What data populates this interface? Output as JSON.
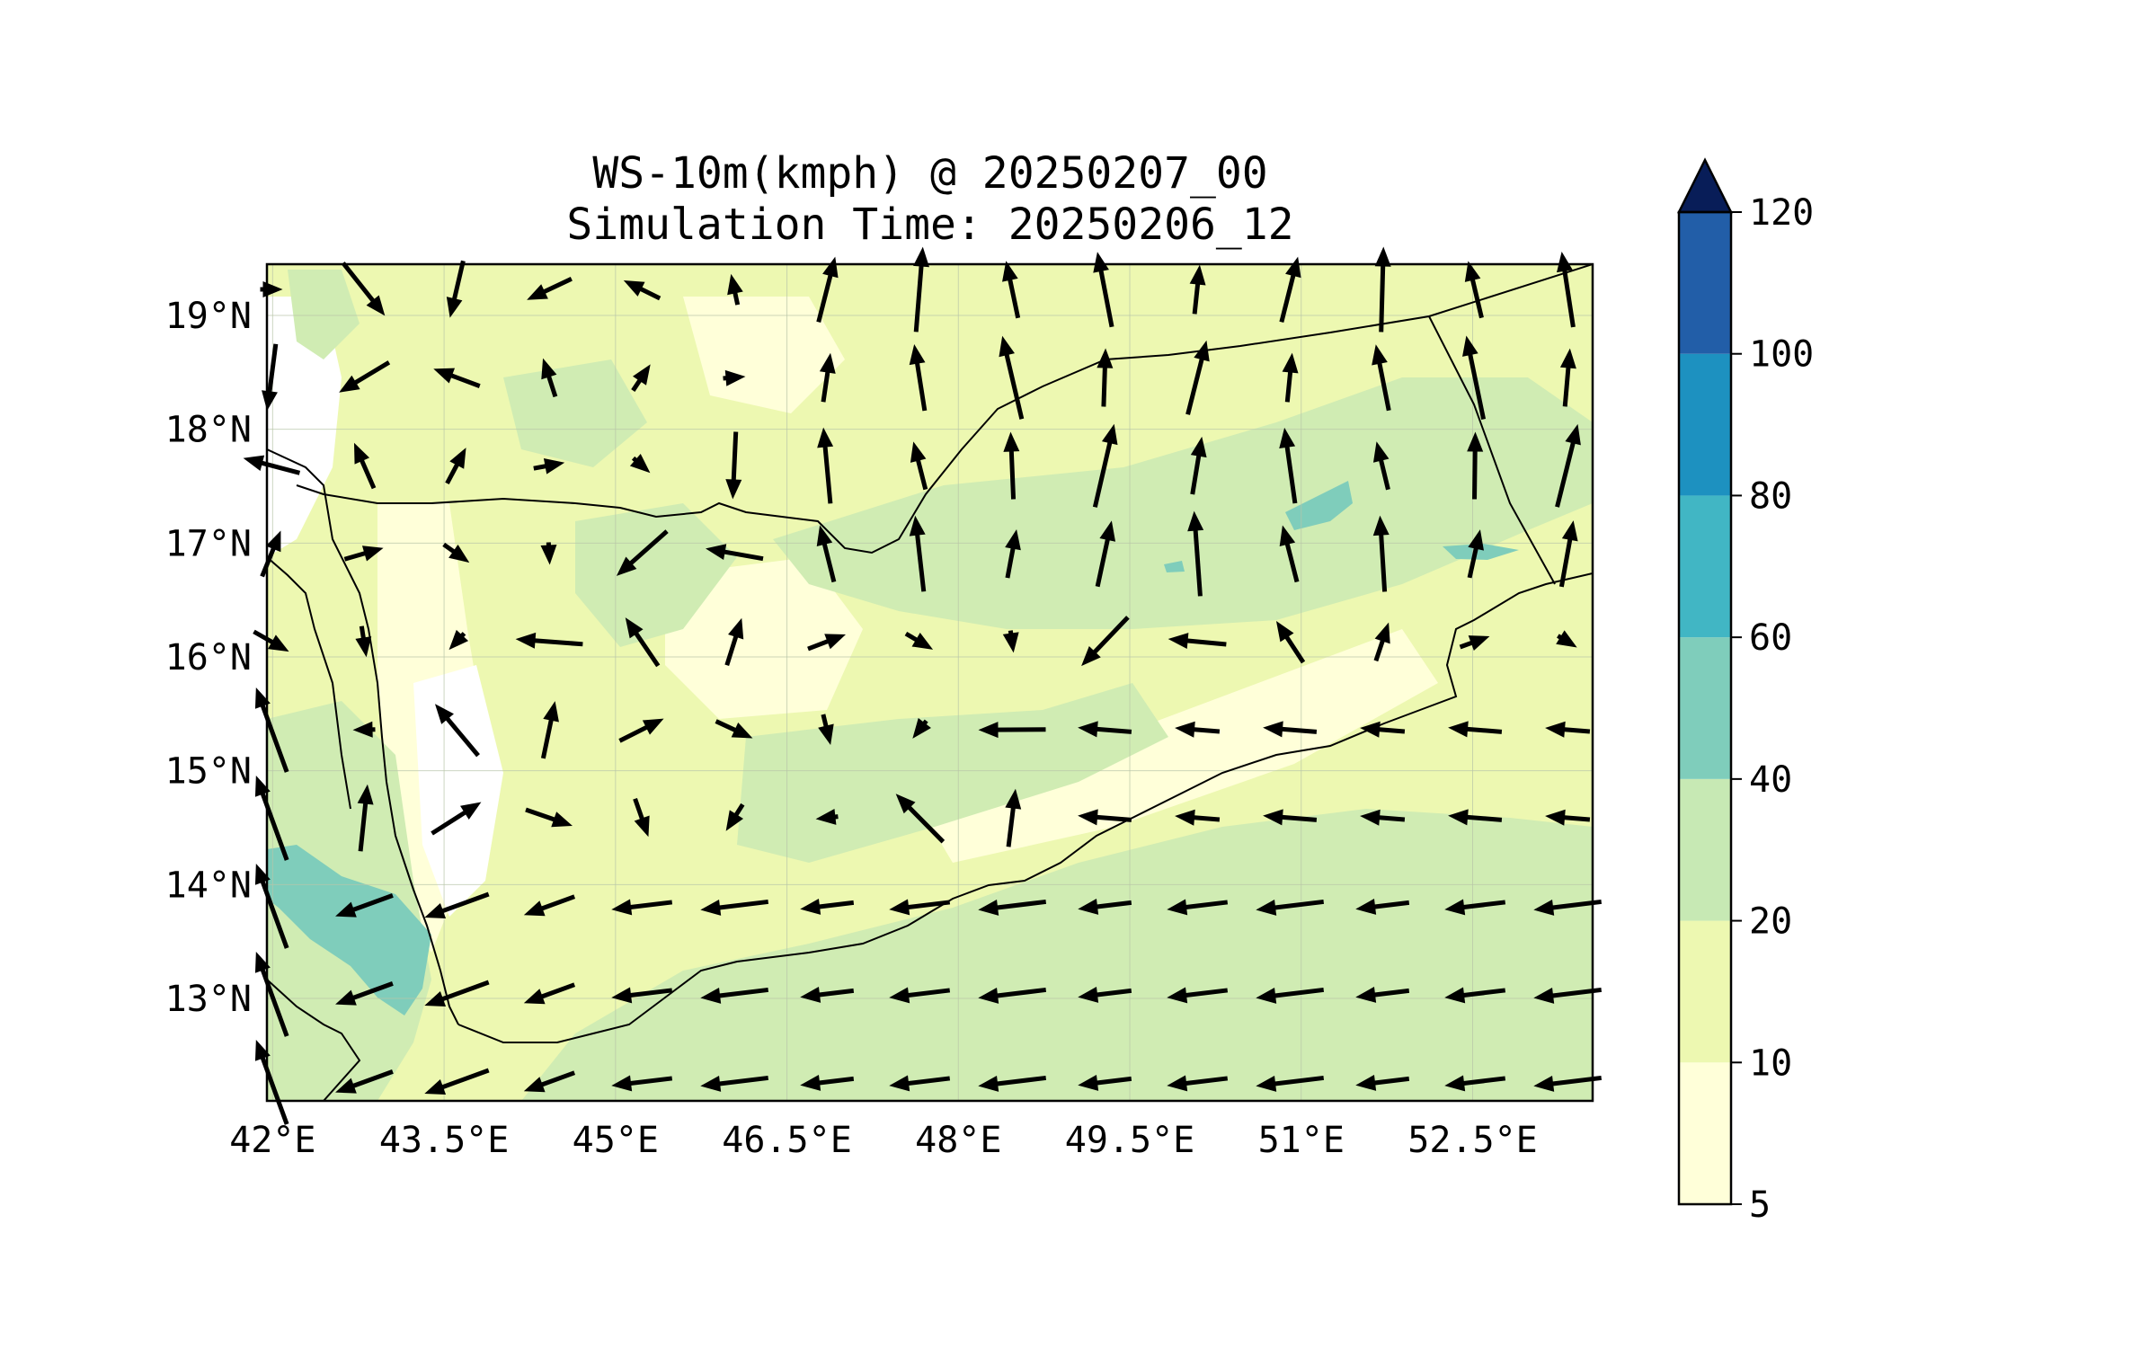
{
  "title": {
    "line1": "WS-10m(kmph) @ 20250207_00",
    "line2": "Simulation Time: 20250206_12"
  },
  "map": {
    "lon_range": [
      41.95,
      53.55
    ],
    "lat_range": [
      12.1,
      19.45
    ],
    "lon_ticks": [
      "42°E",
      "43.5°E",
      "45°E",
      "46.5°E",
      "48°E",
      "49.5°E",
      "51°E",
      "52.5°E"
    ],
    "lat_ticks": [
      "19°N",
      "18°N",
      "17°N",
      "16°N",
      "15°N",
      "14°N",
      "13°N"
    ],
    "field": "10 m wind speed (kmph) filled contours with wind vectors",
    "gridlines": true
  },
  "colorbar": {
    "levels": [
      "5",
      "10",
      "20",
      "40",
      "60",
      "80",
      "100",
      "120"
    ],
    "colors": [
      "#ffffd9",
      "#edf8b1",
      "#c7e9b4",
      "#7fcdbb",
      "#41b6c4",
      "#1d91c0",
      "#225ea8",
      "#253494"
    ],
    "extend_color": "#081d58",
    "extend": "max"
  },
  "colors": {
    "white": "#ffffff",
    "lightest": "#ffffd9",
    "light": "#edf8b1",
    "mid": "#d0ecb3",
    "teal": "#7fcdbb",
    "line": "#000000"
  },
  "icons": {
    "vectors": "arrow-icon"
  }
}
